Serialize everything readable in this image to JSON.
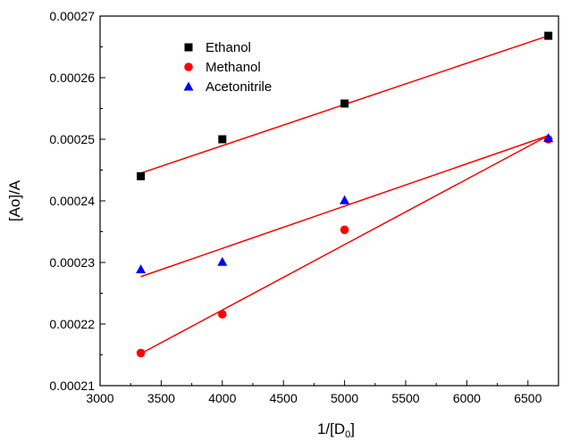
{
  "chart_data": {
    "type": "scatter",
    "xlabel": "1/[D",
    "xlabel_sub": "0",
    "xlabel_suffix": "]",
    "ylabel": "[Ao]/A",
    "xlim": [
      3000,
      6750
    ],
    "ylim": [
      0.00021,
      0.00027
    ],
    "x_ticks": [
      3000,
      3500,
      4000,
      4500,
      5000,
      5500,
      6000,
      6500
    ],
    "x_tick_labels": [
      "3000",
      "3500",
      "4000",
      "4500",
      "5000",
      "5500",
      "6000",
      "6500"
    ],
    "y_ticks": [
      0.00021,
      0.00022,
      0.00023,
      0.00024,
      0.00025,
      0.00026,
      0.00027
    ],
    "y_tick_labels": [
      "0.00021",
      "0.00022",
      "0.00023",
      "0.00024",
      "0.00025",
      "0.00026",
      "0.00027"
    ],
    "grid": false,
    "legend_position": "top-left",
    "fit_line_color": "#ff0000",
    "series": [
      {
        "name": "Ethanol",
        "marker": "square",
        "color": "#000000",
        "x": [
          3333,
          4000,
          5000,
          6667
        ],
        "y": [
          0.000244,
          0.00025,
          0.0002558,
          0.0002668
        ],
        "fit": [
          [
            3333,
            0.0002445
          ],
          [
            6667,
            0.0002668
          ]
        ]
      },
      {
        "name": "Methanol",
        "marker": "circle",
        "color": "#ff0000",
        "x": [
          3333,
          4000,
          5000,
          6667
        ],
        "y": [
          0.0002153,
          0.0002216,
          0.0002353,
          0.00025
        ],
        "fit": [
          [
            3333,
            0.0002152
          ],
          [
            6667,
            0.0002506
          ]
        ]
      },
      {
        "name": "Acetonitrile",
        "marker": "triangle",
        "color": "#0000ff",
        "x": [
          3333,
          4000,
          5000,
          6667
        ],
        "y": [
          0.0002289,
          0.0002301,
          0.0002401,
          0.0002502
        ],
        "fit": [
          [
            3333,
            0.0002277
          ],
          [
            6667,
            0.0002506
          ]
        ]
      }
    ]
  }
}
